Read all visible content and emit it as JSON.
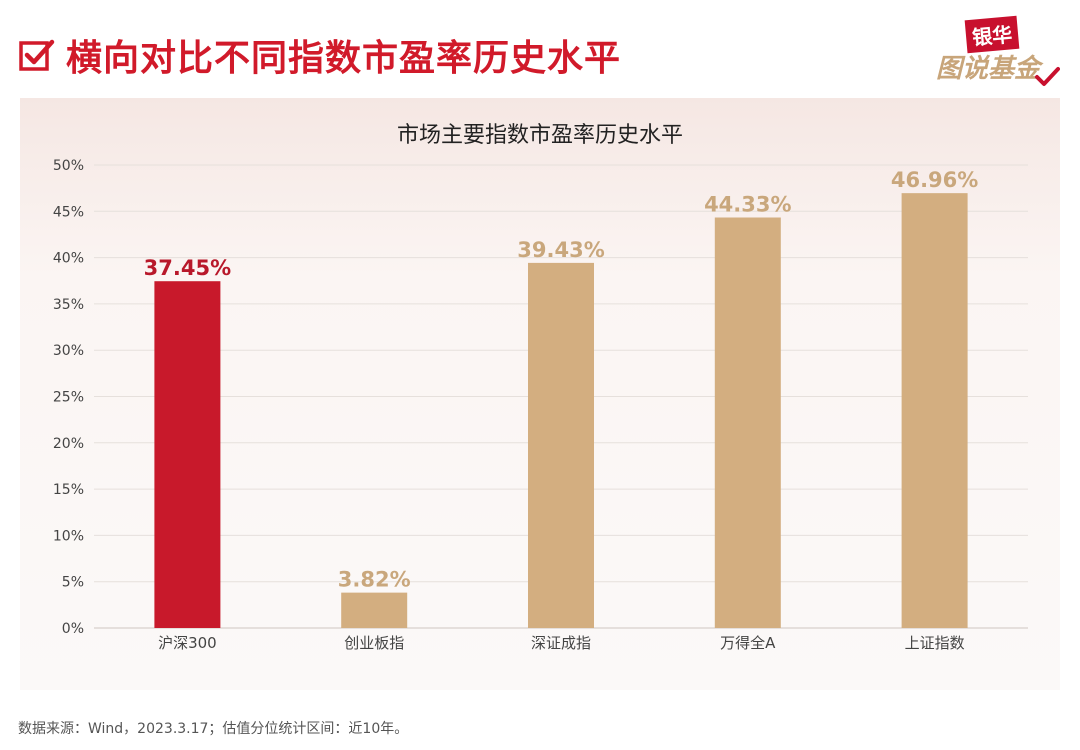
{
  "header": {
    "title": "横向对比不同指数市盈率历史水平",
    "icon": "checkbox-check-icon"
  },
  "logo": {
    "top_text": "银华",
    "bottom_text": "图说基金"
  },
  "chart_data": {
    "type": "bar",
    "title": "市场主要指数市盈率历史水平",
    "categories": [
      "沪深300",
      "创业板指",
      "深证成指",
      "万得全A",
      "上证指数"
    ],
    "values": [
      37.45,
      3.82,
      39.43,
      44.33,
      46.96
    ],
    "value_labels": [
      "37.45%",
      "3.82%",
      "39.43%",
      "44.33%",
      "46.96%"
    ],
    "ylim": [
      0,
      50
    ],
    "yticks": [
      0,
      5,
      10,
      15,
      20,
      25,
      30,
      35,
      40,
      45,
      50
    ],
    "ytick_labels": [
      "0%",
      "5%",
      "10%",
      "15%",
      "20%",
      "25%",
      "30%",
      "35%",
      "40%",
      "45%",
      "50%"
    ],
    "grid": true,
    "legend": "none",
    "colors": {
      "highlight": "#c8192b",
      "default": "#d3ae80",
      "highlight_label": "#b8182a",
      "default_label": "#c9a77c",
      "grid": "#e6e0dc",
      "axis_text": "#444444"
    },
    "highlight_index": 0
  },
  "footer": {
    "note": "数据来源：Wind，2023.3.17；估值分位统计区间：近10年。"
  }
}
